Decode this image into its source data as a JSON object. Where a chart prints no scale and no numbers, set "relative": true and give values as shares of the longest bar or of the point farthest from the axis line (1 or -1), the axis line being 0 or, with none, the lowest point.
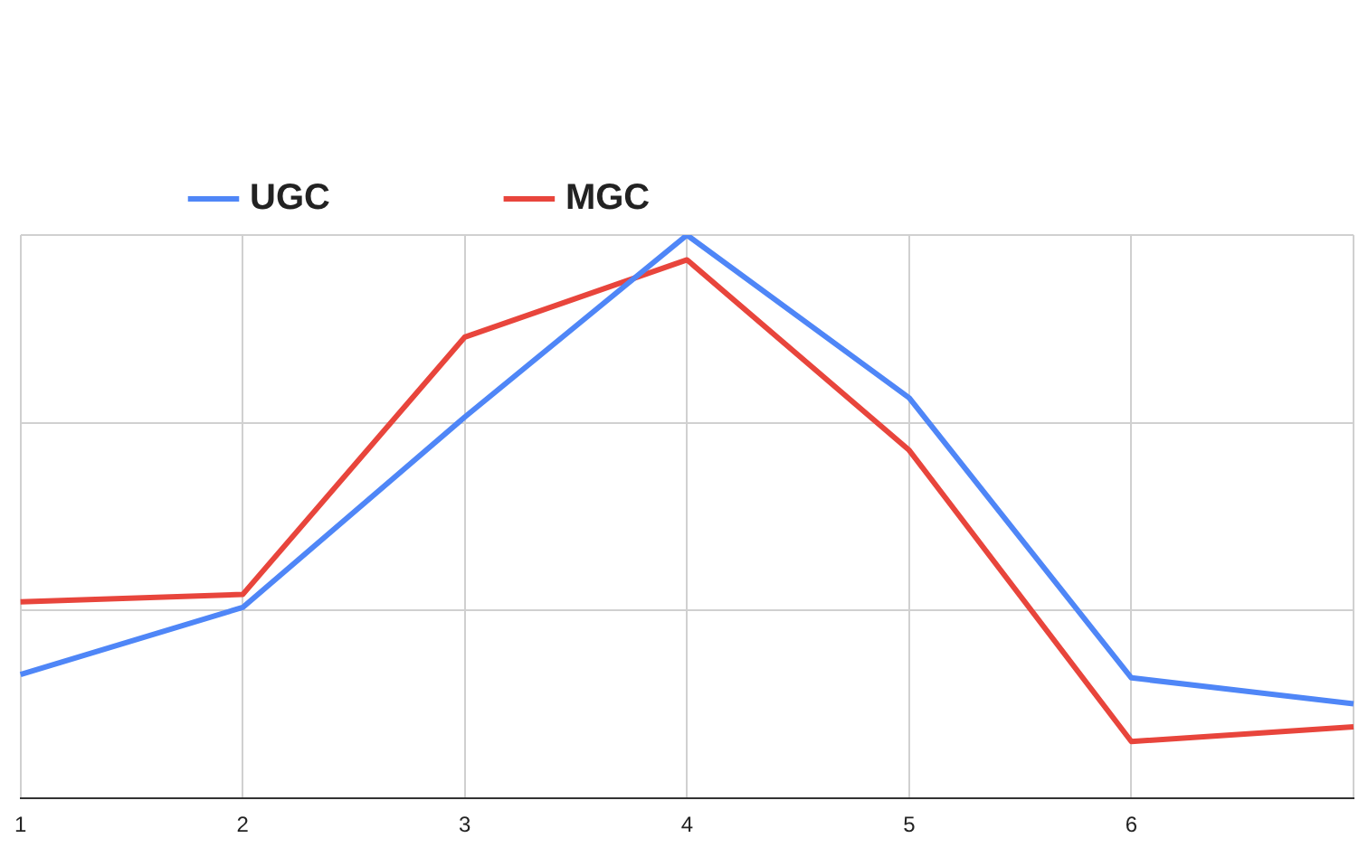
{
  "chart_data": {
    "type": "line",
    "relative": true,
    "categories": [
      "1",
      "2",
      "3",
      "4",
      "5",
      "6",
      null
    ],
    "series": [
      {
        "name": "UGC",
        "color": "#4f86f7",
        "values": [
          0.22,
          0.339,
          0.677,
          1.0,
          0.711,
          0.214,
          0.168
        ]
      },
      {
        "name": "MGC",
        "color": "#e8453c",
        "values": [
          0.349,
          0.362,
          0.819,
          0.956,
          0.618,
          0.101,
          0.127
        ]
      }
    ],
    "grid": true,
    "legend": "top left",
    "marker": "none"
  }
}
